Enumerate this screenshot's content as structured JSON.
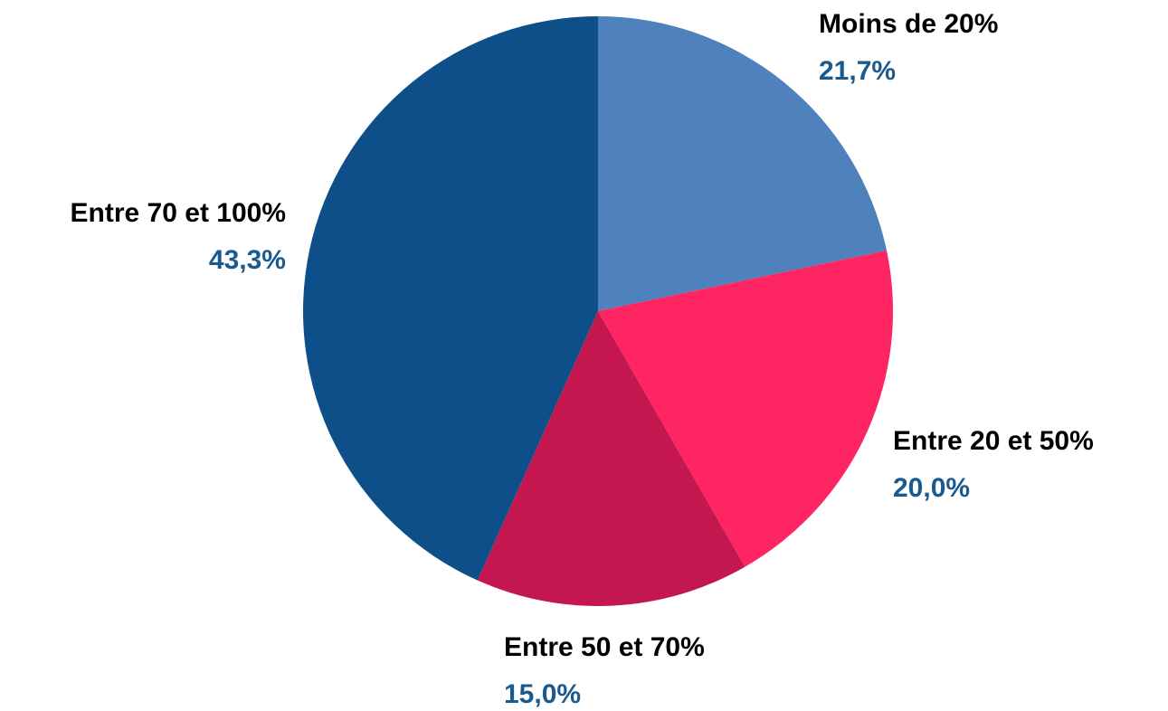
{
  "chart_data": {
    "type": "pie",
    "categories": [
      "Moins de 20%",
      "Entre 20 et 50%",
      "Entre 50 et 70%",
      "Entre 70 et 100%"
    ],
    "values": [
      21.7,
      20.0,
      15.0,
      43.3
    ],
    "value_labels": [
      "21,7%",
      "20,0%",
      "15,0%",
      "43,3%"
    ],
    "colors": [
      "#4f81bd",
      "#ff2462",
      "#c4174f",
      "#0e4f8a"
    ]
  }
}
